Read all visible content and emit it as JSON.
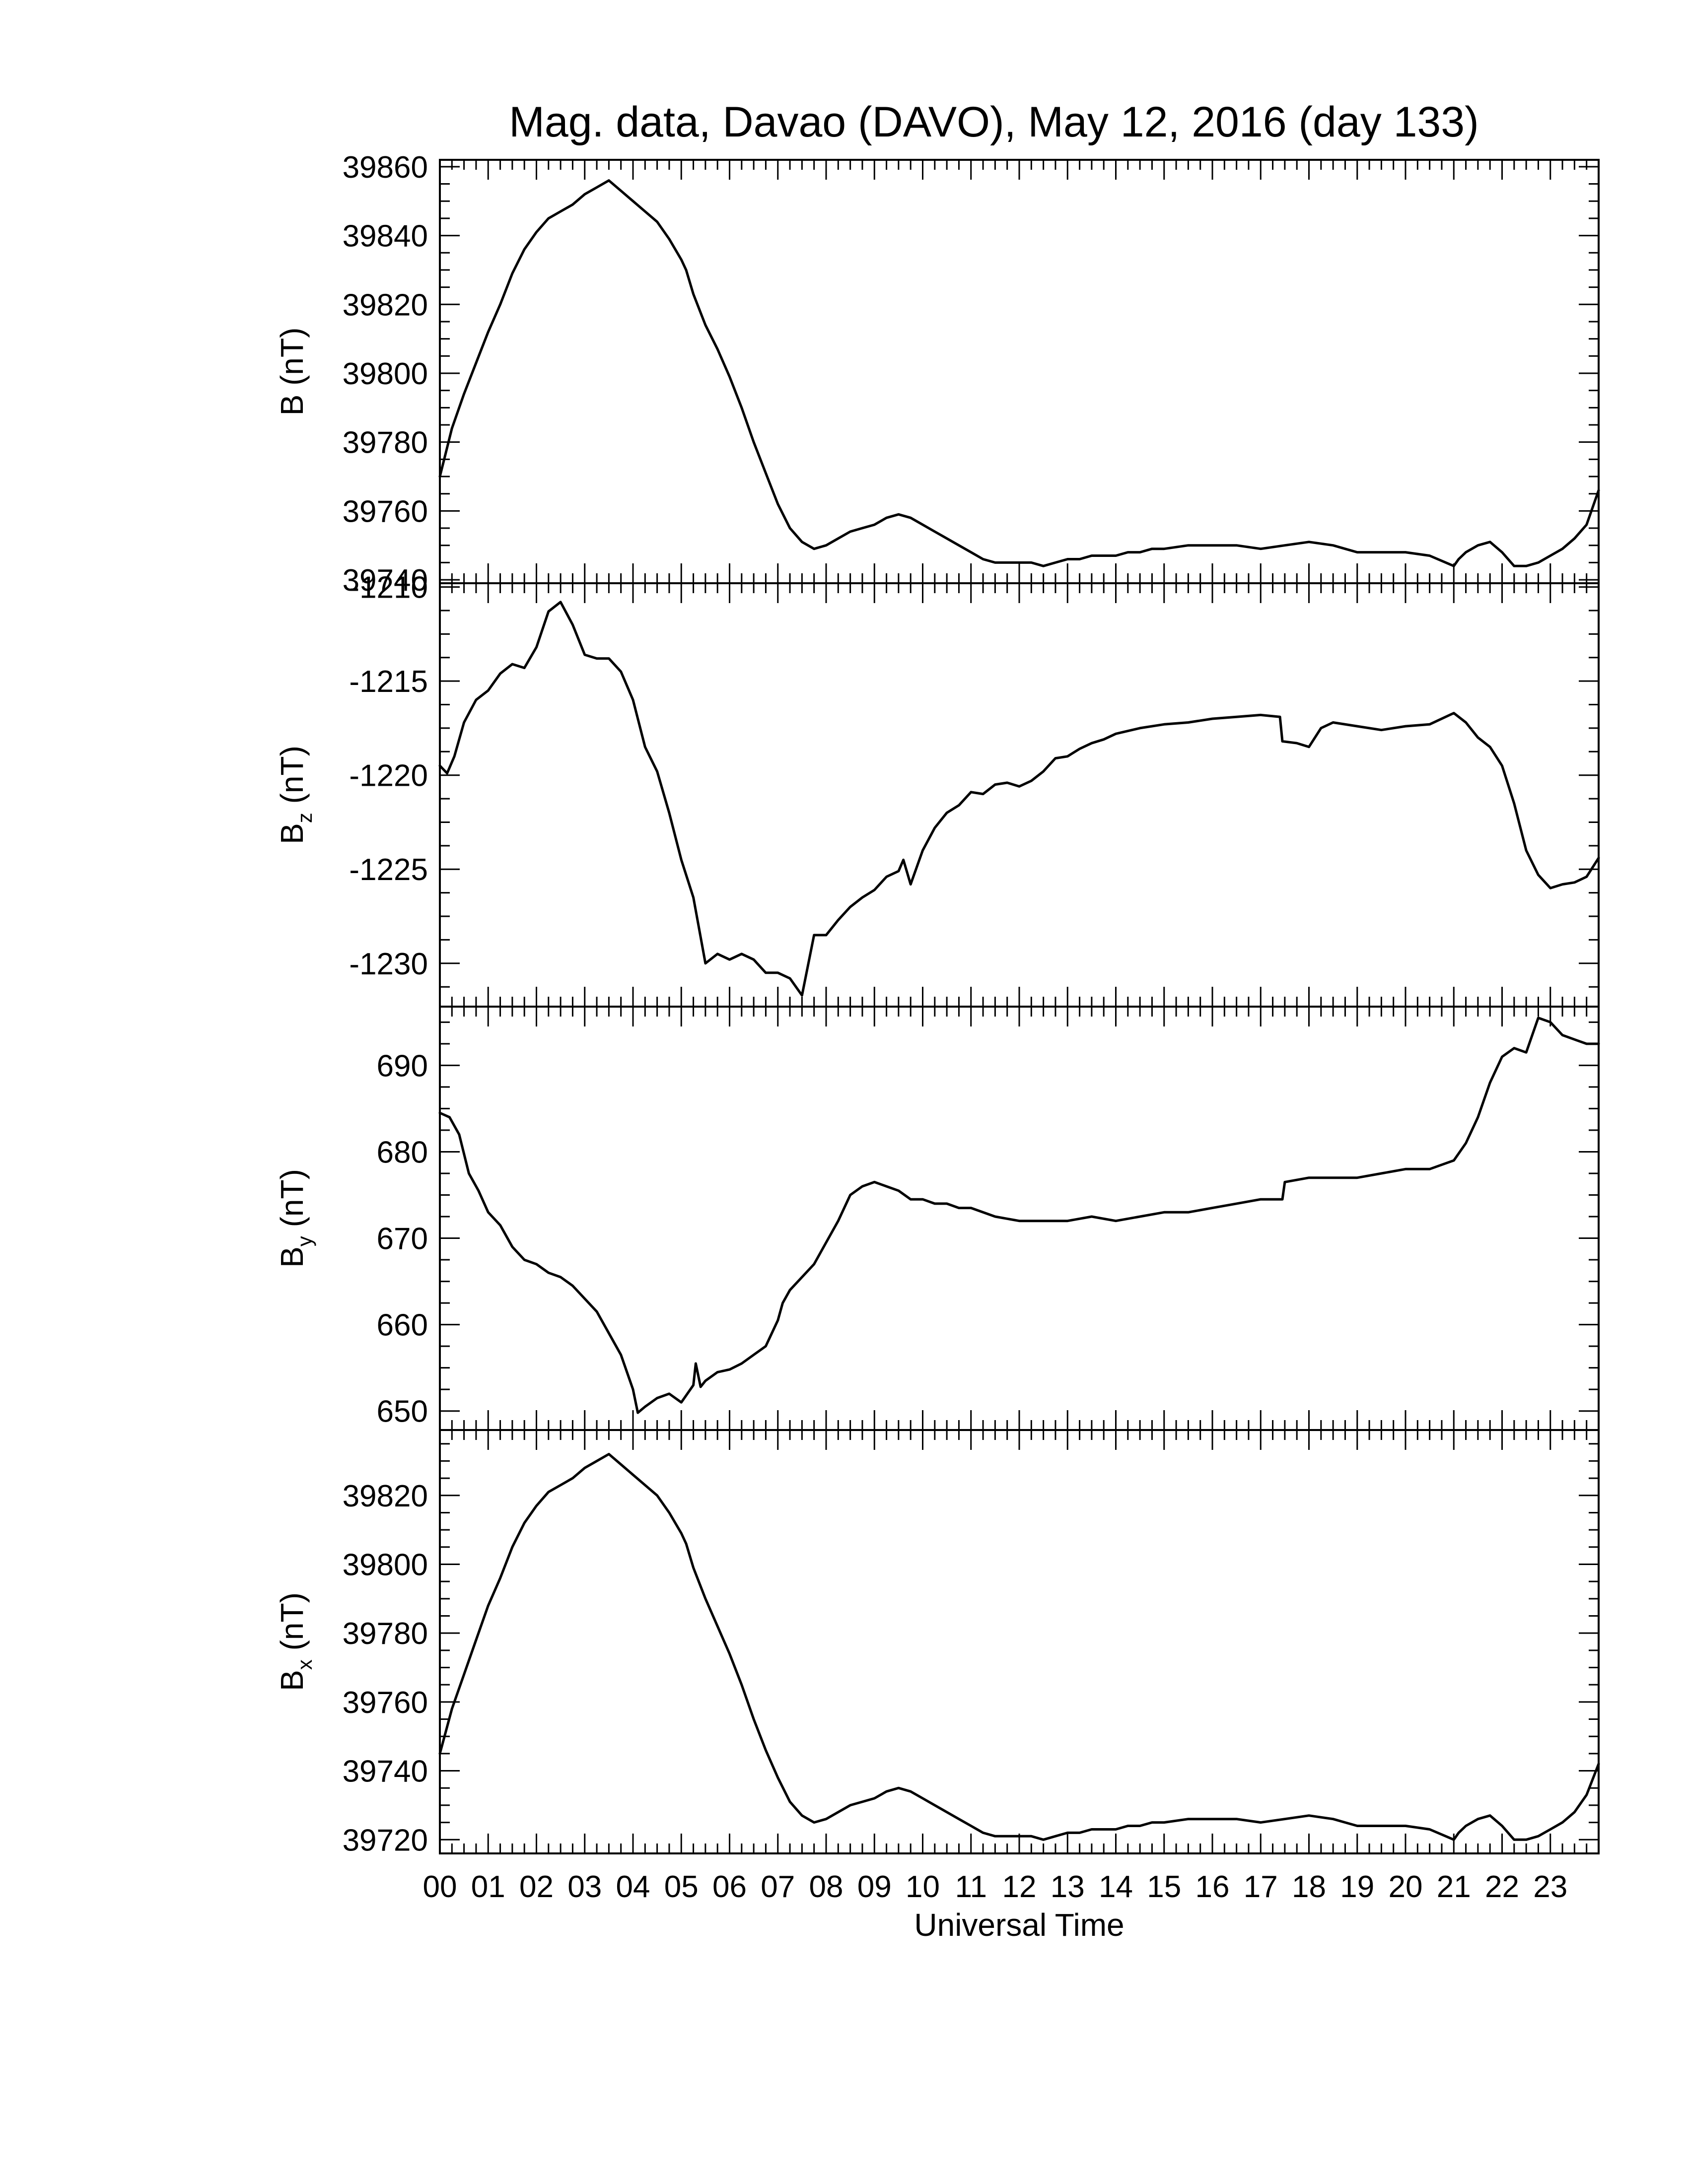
{
  "chart_data": [
    {
      "type": "line",
      "title": "Mag. data, Davao (DAVO), May 12, 2016 (day 133)",
      "xlabel": "Universal Time",
      "xlim": [
        0,
        24
      ],
      "ylabel_main": "B",
      "ylabel_sub": "",
      "ylabel_unit": " (nT)",
      "ylim": [
        39739,
        39862
      ],
      "yticks": [
        39740,
        39760,
        39780,
        39800,
        39820,
        39840,
        39860
      ],
      "series": [
        {
          "x": [
            0,
            0.25,
            0.5,
            0.75,
            1,
            1.25,
            1.5,
            1.75,
            2,
            2.25,
            2.5,
            2.75,
            3,
            3.25,
            3.5,
            3.75,
            4,
            4.25,
            4.5,
            4.75,
            5,
            5.1,
            5.25,
            5.5,
            5.75,
            6,
            6.25,
            6.5,
            6.75,
            7,
            7.25,
            7.5,
            7.75,
            8,
            8.25,
            8.5,
            8.75,
            9,
            9.25,
            9.5,
            9.75,
            10,
            10.25,
            10.5,
            10.75,
            11,
            11.25,
            11.5,
            11.75,
            12,
            12.25,
            12.5,
            12.75,
            13,
            13.25,
            13.5,
            13.75,
            14,
            14.25,
            14.5,
            14.75,
            15,
            15.5,
            16,
            16.5,
            17,
            17.5,
            18,
            18.5,
            18.75,
            19,
            19.5,
            20,
            20.5,
            21,
            21.1,
            21.25,
            21.5,
            21.75,
            22,
            22.25,
            22.5,
            22.75,
            23,
            23.25,
            23.5,
            23.75,
            24
          ],
          "y": [
            39770,
            39784,
            39794,
            39803,
            39812,
            39820,
            39829,
            39836,
            39841,
            39845,
            39847,
            39849,
            39852,
            39854,
            39856,
            39853,
            39850,
            39847,
            39844,
            39839,
            39833,
            39830,
            39823,
            39814,
            39807,
            39799,
            39790,
            39780,
            39771,
            39762,
            39755,
            39751,
            39749,
            39750,
            39752,
            39754,
            39755,
            39756,
            39758,
            39759,
            39758,
            39756,
            39754,
            39752,
            39750,
            39748,
            39746,
            39745,
            39745,
            39745,
            39745,
            39744,
            39745,
            39746,
            39746,
            39747,
            39747,
            39747,
            39748,
            39748,
            39749,
            39749,
            39750,
            39750,
            39750,
            39749,
            39750,
            39751,
            39750,
            39749,
            39748,
            39748,
            39748,
            39747,
            39744,
            39746,
            39748,
            39750,
            39751,
            39748,
            39744,
            39744,
            39745,
            39747,
            39749,
            39752,
            39756,
            39766
          ]
        }
      ]
    },
    {
      "type": "line",
      "xlabel": "",
      "xlim": [
        0,
        24
      ],
      "ylabel_main": "B",
      "ylabel_sub": "z",
      "ylabel_unit": " (nT)",
      "ylim": [
        -1232.3,
        -1209.8
      ],
      "yticks": [
        -1230,
        -1225,
        -1220,
        -1215,
        -1210
      ],
      "series": [
        {
          "x": [
            0,
            0.15,
            0.3,
            0.5,
            0.75,
            1,
            1.25,
            1.5,
            1.75,
            2,
            2.25,
            2.5,
            2.75,
            3,
            3.25,
            3.5,
            3.75,
            4,
            4.25,
            4.5,
            4.75,
            5,
            5.25,
            5.5,
            5.75,
            6,
            6.25,
            6.5,
            6.75,
            7,
            7.25,
            7.5,
            7.75,
            8,
            8.25,
            8.5,
            8.75,
            9,
            9.25,
            9.5,
            9.6,
            9.75,
            10,
            10.25,
            10.5,
            10.75,
            11,
            11.25,
            11.5,
            11.75,
            12,
            12.25,
            12.5,
            12.75,
            13,
            13.25,
            13.5,
            13.75,
            14,
            14.5,
            15,
            15.5,
            16,
            16.5,
            17,
            17.4,
            17.45,
            17.75,
            18,
            18.25,
            18.5,
            19,
            19.5,
            20,
            20.5,
            21,
            21.25,
            21.5,
            21.75,
            22,
            22.25,
            22.5,
            22.75,
            23,
            23.25,
            23.5,
            23.75,
            24
          ],
          "y": [
            -1219.5,
            -1219.9,
            -1219.0,
            -1217.2,
            -1216.0,
            -1215.5,
            -1214.6,
            -1214.1,
            -1214.3,
            -1213.2,
            -1211.3,
            -1210.8,
            -1212.0,
            -1213.6,
            -1213.8,
            -1213.8,
            -1214.5,
            -1216.0,
            -1218.5,
            -1219.8,
            -1222.0,
            -1224.5,
            -1226.5,
            -1230.0,
            -1229.5,
            -1229.8,
            -1229.5,
            -1229.8,
            -1230.5,
            -1230.5,
            -1230.8,
            -1231.7,
            -1228.5,
            -1228.5,
            -1227.7,
            -1227.0,
            -1226.5,
            -1226.1,
            -1225.4,
            -1225.1,
            -1224.5,
            -1225.8,
            -1224.0,
            -1222.8,
            -1222.0,
            -1221.6,
            -1220.9,
            -1221.0,
            -1220.5,
            -1220.4,
            -1220.6,
            -1220.3,
            -1219.8,
            -1219.1,
            -1219.0,
            -1218.6,
            -1218.3,
            -1218.1,
            -1217.8,
            -1217.5,
            -1217.3,
            -1217.2,
            -1217.0,
            -1216.9,
            -1216.8,
            -1216.9,
            -1218.2,
            -1218.3,
            -1218.5,
            -1217.5,
            -1217.2,
            -1217.4,
            -1217.6,
            -1217.4,
            -1217.3,
            -1216.7,
            -1217.2,
            -1218.0,
            -1218.5,
            -1219.5,
            -1221.5,
            -1224.0,
            -1225.3,
            -1226.0,
            -1225.8,
            -1225.7,
            -1225.4,
            -1224.4
          ]
        }
      ]
    },
    {
      "type": "line",
      "xlabel": "",
      "xlim": [
        0,
        24
      ],
      "ylabel_main": "B",
      "ylabel_sub": "y",
      "ylabel_unit": " (nT)",
      "ylim": [
        647.8,
        696.8
      ],
      "yticks": [
        650,
        660,
        670,
        680,
        690
      ],
      "series": [
        {
          "x": [
            0,
            0.2,
            0.4,
            0.6,
            0.8,
            1,
            1.25,
            1.5,
            1.75,
            2,
            2.25,
            2.5,
            2.75,
            3,
            3.25,
            3.5,
            3.75,
            4,
            4.1,
            4.25,
            4.5,
            4.75,
            5,
            5.25,
            5.3,
            5.4,
            5.5,
            5.75,
            6,
            6.25,
            6.5,
            6.75,
            7,
            7.1,
            7.25,
            7.5,
            7.75,
            8,
            8.25,
            8.5,
            8.75,
            9,
            9.25,
            9.5,
            9.75,
            10,
            10.25,
            10.5,
            10.75,
            11,
            11.5,
            12,
            12.5,
            13,
            13.5,
            14,
            14.5,
            15,
            15.5,
            16,
            16.5,
            17,
            17.45,
            17.5,
            18,
            18.5,
            19,
            19.5,
            20,
            20.5,
            21,
            21.25,
            21.5,
            21.75,
            22,
            22.25,
            22.5,
            22.75,
            23,
            23.25,
            23.5,
            23.75,
            24
          ],
          "y": [
            684.5,
            684.0,
            682.0,
            677.5,
            675.5,
            673.0,
            671.5,
            669.0,
            667.5,
            667.0,
            666.0,
            665.5,
            664.5,
            663.0,
            661.5,
            659.0,
            656.5,
            652.5,
            649.8,
            650.5,
            651.5,
            652.0,
            651.0,
            653.0,
            655.5,
            652.8,
            653.5,
            654.5,
            654.8,
            655.5,
            656.5,
            657.5,
            660.5,
            662.5,
            664.0,
            665.5,
            667.0,
            669.5,
            672.0,
            675.0,
            676.0,
            676.5,
            676.0,
            675.5,
            674.5,
            674.5,
            674.0,
            674.0,
            673.5,
            673.5,
            672.5,
            672.0,
            672.0,
            672.0,
            672.5,
            672.0,
            672.5,
            673.0,
            673.0,
            673.5,
            674.0,
            674.5,
            674.5,
            676.5,
            677.0,
            677.0,
            677.0,
            677.5,
            678.0,
            678.0,
            679.0,
            681.0,
            684.0,
            688.0,
            691.0,
            692.0,
            691.5,
            695.5,
            695.0,
            693.5,
            693.0,
            692.5,
            692.5
          ]
        }
      ]
    },
    {
      "type": "line",
      "xlabel": "Universal Time",
      "xlim": [
        0,
        24
      ],
      "ylabel_main": "B",
      "ylabel_sub": "x",
      "ylabel_unit": " (nT)",
      "ylim": [
        39716,
        39839
      ],
      "yticks": [
        39720,
        39740,
        39760,
        39780,
        39800,
        39820
      ],
      "series": [
        {
          "x": [
            0,
            0.25,
            0.5,
            0.75,
            1,
            1.25,
            1.5,
            1.75,
            2,
            2.25,
            2.5,
            2.75,
            3,
            3.25,
            3.5,
            3.75,
            4,
            4.25,
            4.5,
            4.75,
            5,
            5.1,
            5.25,
            5.5,
            5.75,
            6,
            6.25,
            6.5,
            6.75,
            7,
            7.25,
            7.5,
            7.75,
            8,
            8.25,
            8.5,
            8.75,
            9,
            9.25,
            9.5,
            9.75,
            10,
            10.25,
            10.5,
            10.75,
            11,
            11.25,
            11.5,
            11.75,
            12,
            12.25,
            12.5,
            12.75,
            13,
            13.25,
            13.5,
            13.75,
            14,
            14.25,
            14.5,
            14.75,
            15,
            15.5,
            16,
            16.5,
            17,
            17.5,
            18,
            18.5,
            18.75,
            19,
            19.5,
            20,
            20.5,
            21,
            21.1,
            21.25,
            21.5,
            21.75,
            22,
            22.25,
            22.5,
            22.75,
            23,
            23.25,
            23.5,
            23.75,
            24
          ],
          "y": [
            39745,
            39758,
            39768,
            39778,
            39788,
            39796,
            39805,
            39812,
            39817,
            39821,
            39823,
            39825,
            39828,
            39830,
            39832,
            39829,
            39826,
            39823,
            39820,
            39815,
            39809,
            39806,
            39799,
            39790,
            39782,
            39774,
            39765,
            39755,
            39746,
            39738,
            39731,
            39727,
            39725,
            39726,
            39728,
            39730,
            39731,
            39732,
            39734,
            39735,
            39734,
            39732,
            39730,
            39728,
            39726,
            39724,
            39722,
            39721,
            39721,
            39721,
            39721,
            39720,
            39721,
            39722,
            39722,
            39723,
            39723,
            39723,
            39724,
            39724,
            39725,
            39725,
            39726,
            39726,
            39726,
            39725,
            39726,
            39727,
            39726,
            39725,
            39724,
            39724,
            39724,
            39723,
            39720,
            39722,
            39724,
            39726,
            39727,
            39724,
            39720,
            39720,
            39721,
            39723,
            39725,
            39728,
            39733,
            39742
          ]
        }
      ]
    }
  ],
  "x_tick_labels": [
    "00",
    "01",
    "02",
    "03",
    "04",
    "05",
    "06",
    "07",
    "08",
    "09",
    "10",
    "11",
    "12",
    "13",
    "14",
    "15",
    "16",
    "17",
    "18",
    "19",
    "20",
    "21",
    "22",
    "23"
  ]
}
